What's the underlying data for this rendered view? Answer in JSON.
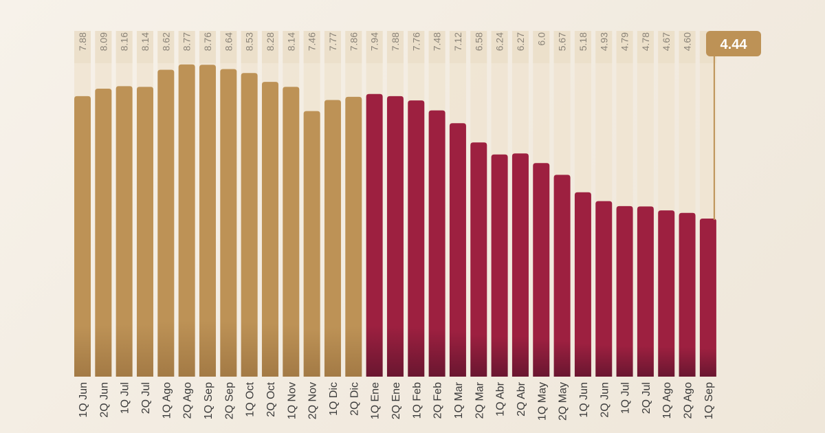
{
  "chart_data": {
    "type": "bar",
    "categories": [
      "1Q Jun",
      "2Q Jun",
      "1Q Jul",
      "2Q Jul",
      "1Q Ago",
      "2Q Ago",
      "1Q Sep",
      "2Q Sep",
      "1Q Oct",
      "2Q Oct",
      "1Q Nov",
      "2Q Nov",
      "1Q Dic",
      "2Q Dic",
      "1Q Ene",
      "2Q Ene",
      "1Q Feb",
      "2Q Feb",
      "1Q Mar",
      "2Q Mar",
      "1Q Abr",
      "2Q Abr",
      "1Q May",
      "2Q May",
      "1Q Jun",
      "2Q Jun",
      "1Q Jul",
      "2Q Jul",
      "1Q Ago",
      "2Q Ago",
      "1Q Sep"
    ],
    "values": [
      7.88,
      8.09,
      8.16,
      8.14,
      8.62,
      8.77,
      8.76,
      8.64,
      8.53,
      8.28,
      8.14,
      7.46,
      7.77,
      7.86,
      7.94,
      7.88,
      7.76,
      7.48,
      7.12,
      6.58,
      6.24,
      6.27,
      6.0,
      5.67,
      5.18,
      4.93,
      4.79,
      4.78,
      4.67,
      4.6,
      4.44
    ],
    "value_labels": [
      "7.88",
      "8.09",
      "8.16",
      "8.14",
      "8.62",
      "8.77",
      "8.76",
      "8.64",
      "8.53",
      "8.28",
      "8.14",
      "7.46",
      "7.77",
      "7.86",
      "7.94",
      "7.88",
      "7.76",
      "7.48",
      "7.12",
      "6.58",
      "6.24",
      "6.27",
      "6.0",
      "5.67",
      "5.18",
      "4.93",
      "4.79",
      "4.78",
      "4.67",
      "4.60",
      ""
    ],
    "series_colors": [
      "#bd9256",
      "#bd9256",
      "#bd9256",
      "#bd9256",
      "#bd9256",
      "#bd9256",
      "#bd9256",
      "#bd9256",
      "#bd9256",
      "#bd9256",
      "#bd9256",
      "#bd9256",
      "#bd9256",
      "#bd9256",
      "#9d2040",
      "#9d2040",
      "#9d2040",
      "#9d2040",
      "#9d2040",
      "#9d2040",
      "#9d2040",
      "#9d2040",
      "#9d2040",
      "#9d2040",
      "#9d2040",
      "#9d2040",
      "#9d2040",
      "#9d2040",
      "#9d2040",
      "#9d2040",
      "#9d2040"
    ],
    "highlight": {
      "label": "4.44",
      "index": 30
    },
    "title": "",
    "xlabel": "",
    "ylabel": "",
    "ylim": [
      0,
      9.75
    ],
    "grid": false,
    "legend": "none"
  },
  "colors": {
    "gold": "#bd9256",
    "gold_dark": "#a37a45",
    "wine": "#9d2040",
    "wine_dark": "#6a1630",
    "column_bg": "#efe3cf",
    "label_text": "#8a8378",
    "tick_text": "#3a3a3a",
    "badge_text": "#ffffff"
  }
}
